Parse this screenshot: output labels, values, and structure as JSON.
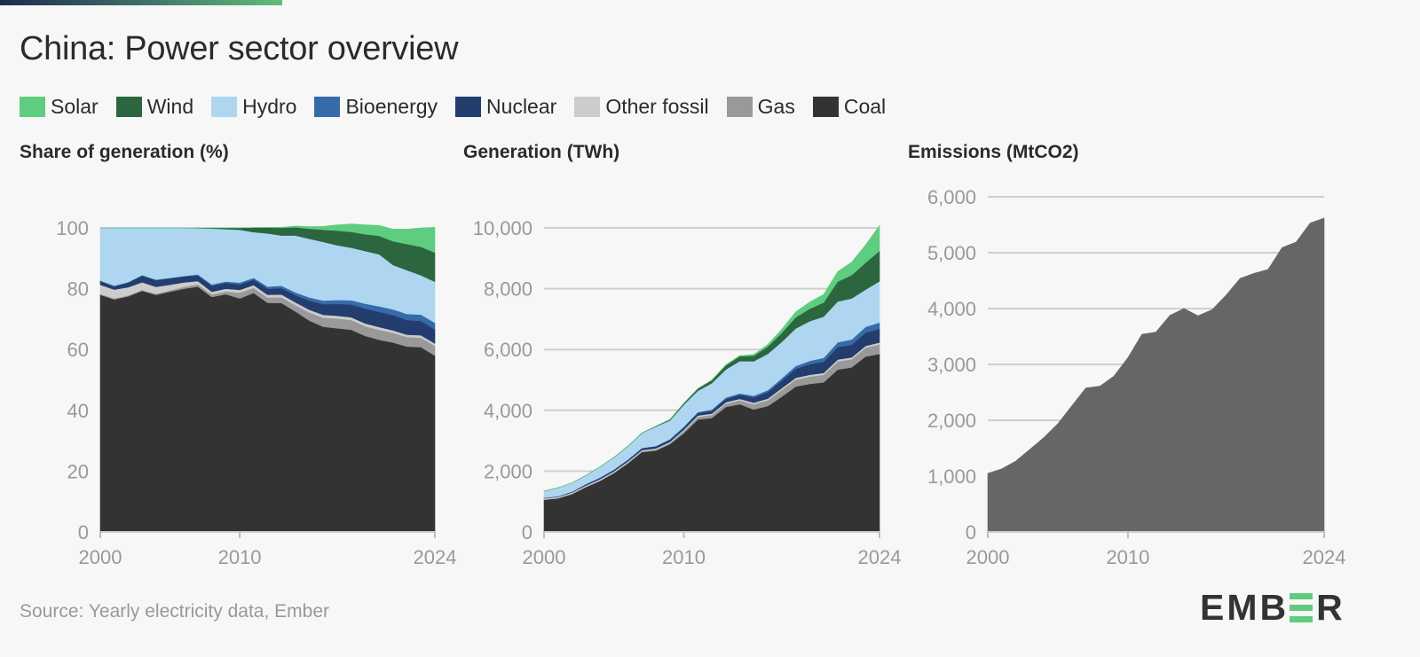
{
  "header": {
    "title": "China: Power sector overview"
  },
  "legend": [
    {
      "label": "Solar",
      "color": "#5fcd7f"
    },
    {
      "label": "Wind",
      "color": "#2c663e"
    },
    {
      "label": "Hydro",
      "color": "#aed6f1"
    },
    {
      "label": "Bioenergy",
      "color": "#356ba8"
    },
    {
      "label": "Nuclear",
      "color": "#233d6e"
    },
    {
      "label": "Other fossil",
      "color": "#cccccc"
    },
    {
      "label": "Gas",
      "color": "#999999"
    },
    {
      "label": "Coal",
      "color": "#333333"
    }
  ],
  "footer": {
    "source": "Source: Yearly electricity data, Ember",
    "logo_left": "EMB",
    "logo_right": "R"
  },
  "chart_data": [
    {
      "type": "area",
      "stacked": true,
      "title": "Share of generation (%)",
      "xlabel": "",
      "ylabel": "Share of generation (%)",
      "x": [
        2000,
        2001,
        2002,
        2003,
        2004,
        2005,
        2006,
        2007,
        2008,
        2009,
        2010,
        2011,
        2012,
        2013,
        2014,
        2015,
        2016,
        2017,
        2018,
        2019,
        2020,
        2021,
        2022,
        2023,
        2024
      ],
      "xticks": [
        "2000",
        "2010",
        "2024"
      ],
      "xtick_values": [
        2000,
        2010,
        2024
      ],
      "yticks": [
        "0",
        "20",
        "40",
        "60",
        "80",
        "100"
      ],
      "ytick_values": [
        0,
        20,
        40,
        60,
        80,
        100
      ],
      "ylim": [
        0,
        100
      ],
      "grid": false,
      "series": [
        {
          "name": "Coal",
          "color": "#333333",
          "values": [
            78.0,
            76.5,
            77.5,
            79.3,
            78.0,
            79.0,
            80.0,
            80.7,
            77.3,
            78.2,
            76.8,
            78.6,
            75.4,
            75.3,
            72.5,
            69.5,
            67.5,
            67.0,
            66.5,
            64.5,
            63.2,
            62.3,
            61.0,
            60.8,
            58.0
          ]
        },
        {
          "name": "Gas",
          "color": "#999999",
          "values": [
            0.3,
            0.3,
            0.3,
            0.3,
            0.3,
            0.5,
            0.6,
            0.8,
            0.8,
            0.9,
            1.9,
            1.7,
            1.7,
            1.9,
            2.1,
            2.7,
            3.0,
            3.2,
            3.2,
            3.2,
            3.3,
            3.2,
            3.1,
            3.1,
            3.2
          ]
        },
        {
          "name": "Other fossil",
          "color": "#cccccc",
          "values": [
            3.0,
            2.9,
            2.7,
            2.5,
            2.3,
            1.8,
            1.5,
            1.0,
            0.9,
            0.9,
            0.9,
            0.9,
            0.9,
            0.9,
            0.9,
            0.9,
            0.9,
            0.9,
            0.9,
            0.9,
            0.9,
            0.8,
            0.8,
            0.8,
            0.8
          ]
        },
        {
          "name": "Nuclear",
          "color": "#233d6e",
          "values": [
            1.2,
            1.1,
            1.5,
            2.2,
            2.2,
            2.1,
            1.9,
            1.9,
            2.0,
            1.9,
            1.8,
            1.8,
            2.0,
            2.1,
            2.4,
            3.0,
            3.5,
            3.9,
            4.2,
            4.9,
            5.0,
            5.0,
            4.8,
            4.7,
            4.6
          ]
        },
        {
          "name": "Bioenergy",
          "color": "#356ba8",
          "values": [
            0.2,
            0.2,
            0.2,
            0.2,
            0.2,
            0.2,
            0.2,
            0.3,
            0.4,
            0.5,
            0.6,
            0.6,
            0.7,
            0.8,
            0.9,
            1.0,
            1.2,
            1.3,
            1.4,
            1.6,
            1.8,
            1.9,
            2.0,
            2.1,
            2.2
          ]
        },
        {
          "name": "Hydro",
          "color": "#aed6f1",
          "values": [
            17.3,
            19.0,
            17.8,
            15.5,
            17.0,
            16.4,
            15.8,
            15.2,
            18.4,
            17.2,
            17.4,
            15.0,
            17.5,
            16.5,
            18.7,
            19.3,
            19.3,
            18.0,
            17.3,
            17.3,
            17.1,
            14.6,
            14.4,
            12.9,
            13.5
          ]
        },
        {
          "name": "Wind",
          "color": "#2c663e",
          "values": [
            0.0,
            0.0,
            0.0,
            0.0,
            0.0,
            0.0,
            0.0,
            0.1,
            0.2,
            0.4,
            0.6,
            1.5,
            1.9,
            2.5,
            2.7,
            3.3,
            4.0,
            4.8,
            5.2,
            5.5,
            6.1,
            7.8,
            8.6,
            9.4,
            9.6
          ]
        },
        {
          "name": "Solar",
          "color": "#5fcd7f",
          "values": [
            0.0,
            0.0,
            0.0,
            0.0,
            0.0,
            0.0,
            0.0,
            0.0,
            0.0,
            0.0,
            0.0,
            0.0,
            0.1,
            0.2,
            0.4,
            0.7,
            1.1,
            1.9,
            2.6,
            3.1,
            3.4,
            4.0,
            4.9,
            6.2,
            8.3
          ]
        }
      ]
    },
    {
      "type": "area",
      "stacked": true,
      "title": "Generation (TWh)",
      "xlabel": "",
      "ylabel": "Generation (TWh)",
      "x": [
        2000,
        2001,
        2002,
        2003,
        2004,
        2005,
        2006,
        2007,
        2008,
        2009,
        2010,
        2011,
        2012,
        2013,
        2014,
        2015,
        2016,
        2017,
        2018,
        2019,
        2020,
        2021,
        2022,
        2023,
        2024
      ],
      "xticks": [
        "2000",
        "2010",
        "2024"
      ],
      "xtick_values": [
        2000,
        2010,
        2024
      ],
      "yticks": [
        "0",
        "2,000",
        "4,000",
        "6,000",
        "8,000",
        "10,000"
      ],
      "ytick_values": [
        0,
        2000,
        4000,
        6000,
        8000,
        10000
      ],
      "ylim": [
        0,
        10000
      ],
      "grid": true,
      "series": [
        {
          "name": "Coal",
          "color": "#333333",
          "values": [
            1060,
            1110,
            1250,
            1480,
            1680,
            1940,
            2260,
            2630,
            2680,
            2890,
            3250,
            3700,
            3750,
            4110,
            4200,
            4030,
            4140,
            4450,
            4780,
            4870,
            4920,
            5340,
            5410,
            5770,
            5850
          ]
        },
        {
          "name": "Gas",
          "color": "#999999",
          "values": [
            4,
            4,
            5,
            6,
            7,
            12,
            17,
            25,
            28,
            33,
            78,
            85,
            97,
            110,
            130,
            170,
            190,
            220,
            230,
            240,
            250,
            270,
            270,
            290,
            320
          ]
        },
        {
          "name": "Other fossil",
          "color": "#cccccc",
          "values": [
            40,
            42,
            43,
            45,
            47,
            45,
            44,
            40,
            40,
            40,
            40,
            45,
            45,
            48,
            50,
            55,
            55,
            58,
            60,
            60,
            60,
            60,
            60,
            60,
            60
          ]
        },
        {
          "name": "Nuclear",
          "color": "#233d6e",
          "values": [
            17,
            18,
            25,
            43,
            50,
            53,
            55,
            62,
            68,
            70,
            74,
            86,
            97,
            112,
            133,
            171,
            213,
            248,
            294,
            348,
            366,
            408,
            418,
            435,
            451
          ]
        },
        {
          "name": "Bioenergy",
          "color": "#356ba8",
          "values": [
            3,
            3,
            4,
            4,
            5,
            5,
            6,
            8,
            14,
            20,
            25,
            30,
            35,
            40,
            45,
            55,
            65,
            80,
            95,
            110,
            130,
            160,
            170,
            190,
            210
          ]
        },
        {
          "name": "Hydro",
          "color": "#aed6f1",
          "values": [
            222,
            277,
            288,
            283,
            354,
            398,
            435,
            485,
            637,
            615,
            722,
            699,
            872,
            920,
            1064,
            1130,
            1193,
            1194,
            1232,
            1304,
            1355,
            1339,
            1352,
            1226,
            1354
          ]
        },
        {
          "name": "Wind",
          "color": "#2c663e",
          "values": [
            1,
            1,
            1,
            1,
            1,
            2,
            4,
            6,
            13,
            28,
            45,
            70,
            96,
            141,
            156,
            186,
            241,
            295,
            366,
            406,
            467,
            656,
            762,
            886,
            997
          ]
        },
        {
          "name": "Solar",
          "color": "#5fcd7f",
          "values": [
            0,
            0,
            0,
            0,
            0,
            0,
            0,
            0,
            0,
            0,
            1,
            3,
            6,
            15,
            24,
            39,
            67,
            118,
            178,
            223,
            261,
            327,
            428,
            584,
            834
          ]
        }
      ]
    },
    {
      "type": "area",
      "stacked": false,
      "title": "Emissions (MtCO2)",
      "xlabel": "",
      "ylabel": "Emissions (MtCO2)",
      "x": [
        2000,
        2001,
        2002,
        2003,
        2004,
        2005,
        2006,
        2007,
        2008,
        2009,
        2010,
        2011,
        2012,
        2013,
        2014,
        2015,
        2016,
        2017,
        2018,
        2019,
        2020,
        2021,
        2022,
        2023,
        2024
      ],
      "xticks": [
        "2000",
        "2010",
        "2024"
      ],
      "xtick_values": [
        2000,
        2010,
        2024
      ],
      "yticks": [
        "0",
        "1,000",
        "2,000",
        "3,000",
        "4,000",
        "5,000",
        "6,000"
      ],
      "ytick_values": [
        0,
        1000,
        2000,
        3000,
        4000,
        5000,
        6000
      ],
      "ylim": [
        0,
        6000
      ],
      "grid": true,
      "series": [
        {
          "name": "Emissions",
          "color": "#666666",
          "values": [
            1050,
            1130,
            1270,
            1480,
            1690,
            1940,
            2260,
            2580,
            2610,
            2790,
            3120,
            3540,
            3580,
            3880,
            4000,
            3870,
            3980,
            4240,
            4540,
            4630,
            4700,
            5090,
            5190,
            5530,
            5620
          ]
        }
      ]
    }
  ]
}
